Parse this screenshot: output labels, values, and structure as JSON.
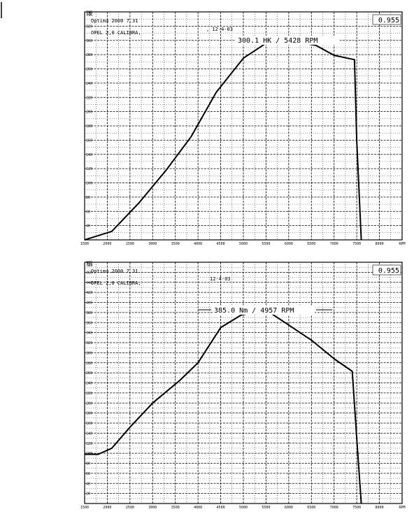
{
  "chart_data": [
    {
      "type": "line",
      "unit_label": "HK",
      "software": "Optima 2000 7.31",
      "vehicle": "OPEL 2,0 CALIBRA,",
      "date": ", 12-4-03",
      "correction_factor": "0.955",
      "annotation": "300.1 HK / 5428 RPM",
      "xlabel": "RPM",
      "xlim": [
        1500,
        8500
      ],
      "ylim": [
        20,
        340
      ],
      "grid": true,
      "x_ticks": [
        1500,
        2000,
        2500,
        3000,
        3500,
        4000,
        4500,
        5000,
        5500,
        6000,
        6500,
        7000,
        7500,
        8000,
        8500
      ],
      "x_tick_labels": [
        "1500",
        "2000",
        "2500",
        "3000",
        "3500",
        "4000",
        "4500",
        "5000",
        "5500",
        "6000",
        "6500",
        "7000",
        "7500",
        "8000",
        "RPM"
      ],
      "y_ticks": [
        40,
        60,
        80,
        100,
        120,
        140,
        160,
        180,
        200,
        220,
        240,
        260,
        280,
        300,
        320,
        340
      ],
      "series": [
        {
          "x": [
            1500,
            2100,
            2700,
            3300,
            3850,
            4400,
            5000,
            5450,
            5500,
            6000,
            6600,
            7000,
            7450,
            7500,
            7600
          ],
          "y": [
            20,
            32,
            72,
            118,
            165,
            227,
            275,
            294,
            300,
            300,
            293,
            279,
            273,
            160,
            20
          ]
        }
      ]
    },
    {
      "type": "line",
      "unit_label": "Nm",
      "software": "Optima 2000 7.31",
      "vehicle": "OPEL 2,0 CALIBRA,",
      "date": "12-4-03",
      "correction_factor": "0.955",
      "annotation": "385.0 Nm / 4957 RPM",
      "xlabel": "RPM",
      "xlim": [
        1500,
        8500
      ],
      "ylim": [
        0,
        480
      ],
      "grid": true,
      "x_ticks": [
        1500,
        2000,
        2500,
        3000,
        3500,
        4000,
        4500,
        5000,
        5500,
        6000,
        6500,
        7000,
        7500,
        8000,
        8500
      ],
      "x_tick_labels": [
        "1500",
        "2000",
        "2500",
        "3000",
        "3500",
        "4000",
        "4500",
        "5000",
        "5500",
        "6000",
        "6500",
        "7000",
        "7500",
        "8000",
        "RPM"
      ],
      "y_ticks": [
        20,
        40,
        60,
        80,
        100,
        120,
        140,
        160,
        180,
        200,
        220,
        240,
        260,
        280,
        300,
        320,
        340,
        360,
        380,
        400,
        420,
        440,
        460,
        480
      ],
      "series": [
        {
          "x": [
            1500,
            1800,
            2100,
            2500,
            3000,
            3600,
            4000,
            4500,
            4950,
            5500,
            6000,
            6500,
            7000,
            7400,
            7500,
            7600
          ],
          "y": [
            98,
            98,
            110,
            152,
            200,
            245,
            280,
            350,
            375,
            385,
            355,
            325,
            288,
            263,
            130,
            0
          ]
        }
      ]
    }
  ]
}
